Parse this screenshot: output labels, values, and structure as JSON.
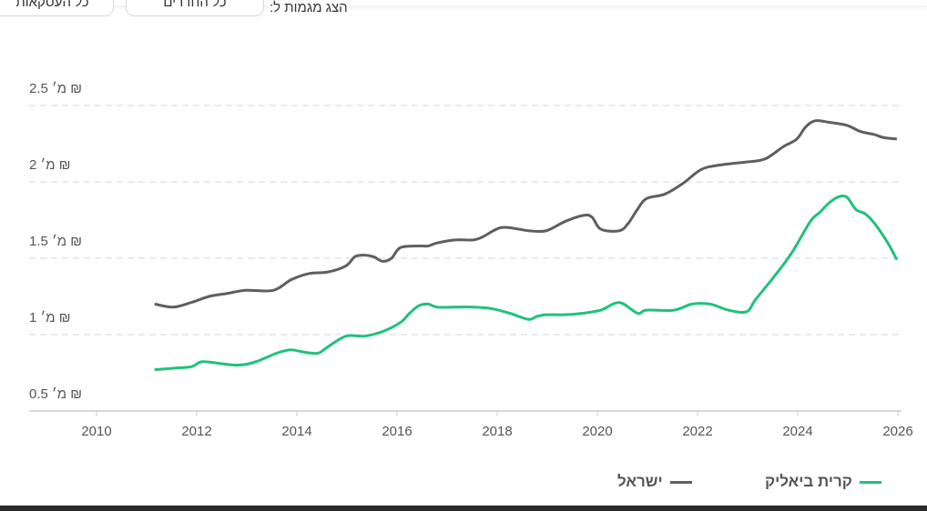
{
  "filters": {
    "label": "הצג מגמות ל:",
    "rooms_button": "כל החדרים",
    "deals_button": "כל העסקאות"
  },
  "chart_data": {
    "type": "line",
    "title": "",
    "xlabel": "",
    "ylabel": "",
    "xlim": [
      2008.9,
      2026.1
    ],
    "ylim": [
      0.5,
      2.5
    ],
    "x_ticks": [
      "2010",
      "2012",
      "2014",
      "2016",
      "2018",
      "2020",
      "2022",
      "2024",
      "2026"
    ],
    "y_ticks": [
      "0.5 מ׳ ₪",
      "1 מ׳ ₪",
      "1.5 מ׳ ₪",
      "2 מ׳ ₪",
      "2.5 מ׳ ₪"
    ],
    "y_tick_values": [
      0.5,
      1,
      1.5,
      2,
      2.5
    ],
    "grid": true,
    "legend_position": "bottom",
    "series": [
      {
        "name": "ישראל",
        "color": "#5f5f5f",
        "x": [
          2011.16,
          2011.53,
          2011.89,
          2012.25,
          2012.62,
          2012.98,
          2013.53,
          2013.89,
          2014.25,
          2014.62,
          2014.98,
          2015.16,
          2015.35,
          2015.53,
          2015.71,
          2015.89,
          2016.07,
          2016.44,
          2016.62,
          2016.8,
          2017.16,
          2017.53,
          2017.71,
          2018.07,
          2018.44,
          2018.62,
          2018.98,
          2019.35,
          2019.71,
          2019.89,
          2020.07,
          2020.44,
          2020.62,
          2020.8,
          2020.98,
          2021.35,
          2021.71,
          2022.07,
          2022.44,
          2022.98,
          2023.35,
          2023.71,
          2023.98,
          2024.16,
          2024.35,
          2024.62,
          2024.98,
          2025.25,
          2025.53,
          2025.71,
          2025.98
        ],
        "y": [
          1.2,
          1.18,
          1.21,
          1.25,
          1.27,
          1.29,
          1.29,
          1.36,
          1.4,
          1.41,
          1.45,
          1.51,
          1.52,
          1.51,
          1.48,
          1.5,
          1.57,
          1.58,
          1.58,
          1.6,
          1.62,
          1.62,
          1.64,
          1.7,
          1.69,
          1.68,
          1.68,
          1.74,
          1.78,
          1.77,
          1.69,
          1.68,
          1.73,
          1.82,
          1.89,
          1.92,
          1.99,
          2.08,
          2.11,
          2.13,
          2.15,
          2.23,
          2.28,
          2.36,
          2.4,
          2.39,
          2.37,
          2.33,
          2.31,
          2.29,
          2.28
        ]
      },
      {
        "name": "קרית ביאליק",
        "color": "#1fc27a",
        "x": [
          2011.16,
          2011.53,
          2011.89,
          2012.07,
          2012.25,
          2012.8,
          2013.16,
          2013.53,
          2013.71,
          2013.89,
          2014.07,
          2014.25,
          2014.44,
          2014.62,
          2014.98,
          2015.35,
          2015.71,
          2016.07,
          2016.25,
          2016.44,
          2016.62,
          2016.8,
          2017.16,
          2017.53,
          2017.89,
          2018.25,
          2018.62,
          2018.8,
          2018.98,
          2019.35,
          2019.71,
          2020.07,
          2020.44,
          2020.8,
          2020.98,
          2021.53,
          2021.89,
          2022.25,
          2022.62,
          2022.98,
          2023.16,
          2023.53,
          2023.89,
          2024.25,
          2024.44,
          2024.62,
          2024.8,
          2024.98,
          2025.16,
          2025.35,
          2025.53,
          2025.8,
          2025.98
        ],
        "y": [
          0.77,
          0.78,
          0.79,
          0.82,
          0.82,
          0.8,
          0.82,
          0.87,
          0.89,
          0.9,
          0.89,
          0.88,
          0.88,
          0.92,
          0.99,
          0.99,
          1.02,
          1.08,
          1.14,
          1.19,
          1.2,
          1.18,
          1.18,
          1.18,
          1.17,
          1.14,
          1.1,
          1.12,
          1.13,
          1.13,
          1.14,
          1.16,
          1.21,
          1.14,
          1.16,
          1.16,
          1.2,
          1.2,
          1.16,
          1.15,
          1.23,
          1.38,
          1.54,
          1.74,
          1.8,
          1.86,
          1.9,
          1.9,
          1.82,
          1.79,
          1.73,
          1.6,
          1.49
        ]
      }
    ]
  }
}
